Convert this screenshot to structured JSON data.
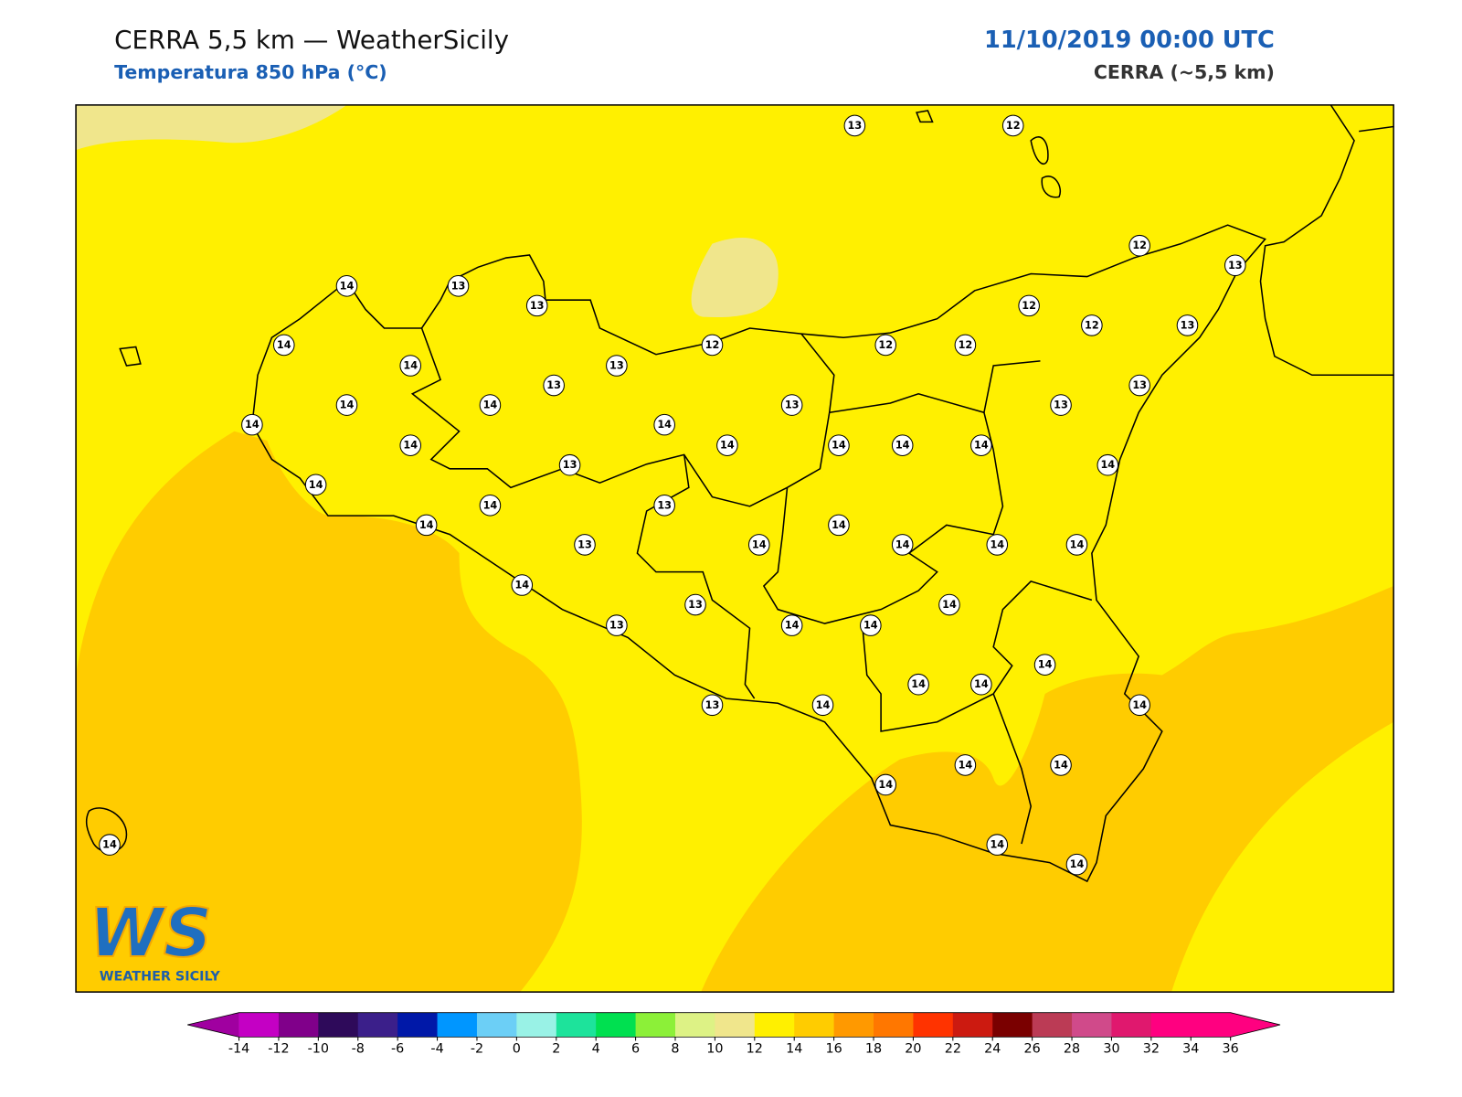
{
  "header": {
    "title": "CERRA 5,5 km — WeatherSicily",
    "subtitle": "Temperatura 850 hPa (°C)",
    "valid_time": "11/10/2019 00:00 UTC",
    "model": "CERRA (~5,5 km)"
  },
  "logo": {
    "letters": "WS",
    "name": "WEATHER SICILY"
  },
  "map": {
    "station_values": [
      13,
      12,
      14,
      13,
      13,
      14,
      14,
      13,
      12,
      12,
      12,
      12,
      12,
      12,
      13,
      13,
      14,
      14,
      13,
      14,
      13,
      14,
      14,
      14,
      14,
      14,
      14,
      13,
      13,
      14,
      14,
      13,
      14,
      13,
      14,
      13,
      14,
      14,
      14,
      14,
      14,
      14,
      13,
      14,
      13,
      14,
      14,
      14,
      14,
      14,
      14,
      13,
      14,
      14,
      14,
      14,
      14,
      14,
      14
    ]
  },
  "colorbar": {
    "ticks": [
      -14,
      -12,
      -10,
      -8,
      -6,
      -4,
      -2,
      0,
      2,
      4,
      6,
      8,
      10,
      12,
      14,
      16,
      18,
      20,
      22,
      24,
      26,
      28,
      30,
      32,
      34,
      36
    ],
    "colors": [
      "#c400c4",
      "#80008a",
      "#2e0a5a",
      "#3b1f8a",
      "#0018a8",
      "#0096ff",
      "#6ccff6",
      "#99f2e6",
      "#1de39b",
      "#00e050",
      "#8cf038",
      "#ddf285",
      "#f0e68c",
      "#fff000",
      "#ffcc00",
      "#ff9900",
      "#ff7700",
      "#ff3300",
      "#cc1a10",
      "#7a0000",
      "#bb3b55",
      "#d04a8a",
      "#e0186e",
      "#ff0080",
      "#ff0080"
    ],
    "under_color": "#a000a0",
    "over_color": "#ff0080"
  }
}
